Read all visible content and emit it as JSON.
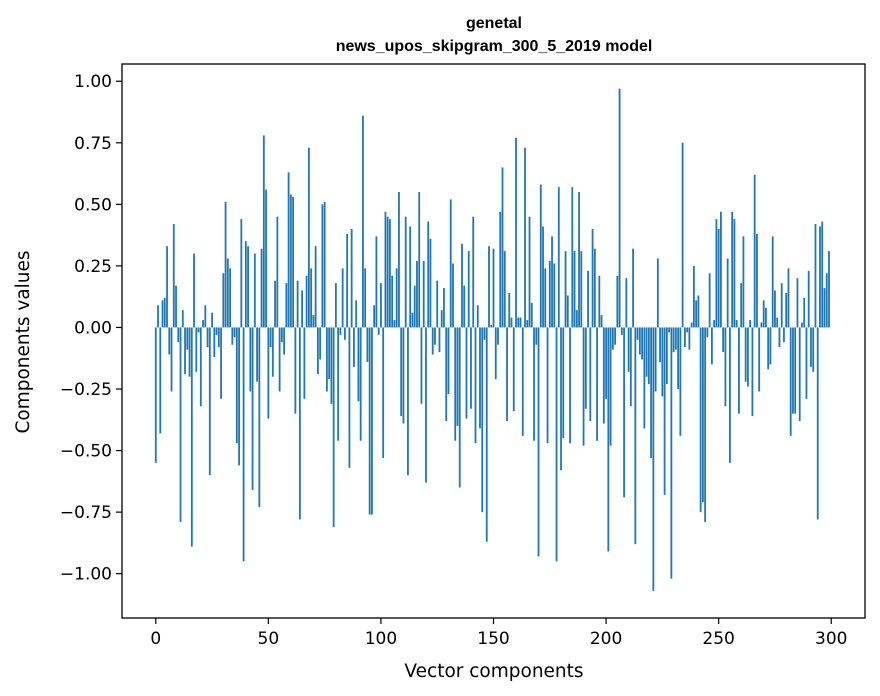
{
  "chart_data": {
    "type": "bar",
    "title": [
      "genetal",
      "news_upos_skipgram_300_5_2019 model"
    ],
    "xlabel": "Vector components",
    "ylabel": "Components values",
    "xlim": [
      -15,
      315
    ],
    "ylim": [
      -1.18,
      1.07
    ],
    "xticks": [
      0,
      50,
      100,
      150,
      200,
      250,
      300
    ],
    "yticks": [
      -1.0,
      -0.75,
      -0.5,
      -0.25,
      0.0,
      0.25,
      0.5,
      0.75,
      1.0
    ],
    "ytick_labels": [
      "−1.00",
      "−0.75",
      "−0.50",
      "−0.25",
      "0.00",
      "0.25",
      "0.50",
      "0.75",
      "1.00"
    ],
    "bar_color": "#1f77b4",
    "grid": false,
    "values": [
      -0.55,
      0.09,
      -0.43,
      0.11,
      0.12,
      0.33,
      -0.11,
      -0.26,
      0.42,
      0.17,
      -0.06,
      -0.79,
      0.07,
      -0.19,
      -0.09,
      -0.2,
      -0.89,
      0.3,
      -0.18,
      -0.02,
      -0.32,
      0.03,
      0.09,
      -0.08,
      -0.6,
      0.06,
      -0.12,
      -0.03,
      -0.08,
      -0.29,
      0.22,
      0.51,
      0.28,
      0.24,
      -0.07,
      -0.04,
      -0.47,
      -0.56,
      0.44,
      -0.95,
      0.35,
      0.33,
      -0.26,
      -0.66,
      0.3,
      -0.22,
      -0.73,
      0.32,
      0.78,
      0.56,
      -0.37,
      -0.08,
      -0.2,
      0.19,
      0.45,
      -0.26,
      -0.06,
      -0.11,
      0.18,
      0.63,
      0.54,
      0.53,
      -0.35,
      0.19,
      -0.78,
      0.15,
      -0.29,
      0.21,
      0.73,
      0.24,
      0.05,
      0.33,
      -0.19,
      -0.13,
      0.5,
      0.51,
      -0.26,
      -0.21,
      -0.31,
      -0.81,
      0.18,
      -0.46,
      -0.03,
      0.24,
      -0.05,
      0.38,
      -0.57,
      0.4,
      -0.16,
      0.11,
      -0.3,
      -0.46,
      0.86,
      0.24,
      -0.14,
      -0.76,
      -0.76,
      0.09,
      0.37,
      -0.03,
      0.18,
      -0.53,
      0.47,
      0.45,
      0.44,
      0.21,
      0.03,
      0.24,
      0.55,
      -0.36,
      -0.39,
      0.45,
      -0.6,
      0.41,
      0.06,
      0.17,
      0.27,
      0.55,
      -0.31,
      0.27,
      -0.63,
      0.43,
      0.36,
      -0.11,
      -0.07,
      0.19,
      -0.1,
      0.07,
      0.16,
      -0.38,
      -0.27,
      0.52,
      0.26,
      -0.46,
      -0.4,
      -0.65,
      0.34,
      0.17,
      -0.37,
      0.31,
      -0.33,
      0.45,
      -0.47,
      0.09,
      -0.41,
      -0.75,
      -0.05,
      -0.87,
      0.33,
      0.01,
      0.32,
      -0.21,
      -0.07,
      0.47,
      0.65,
      0.31,
      -0.38,
      0.14,
      0.04,
      -0.34,
      0.77,
      0.04,
      0.04,
      -0.44,
      0.73,
      0.03,
      0.45,
      0.1,
      -0.46,
      -0.07,
      -0.93,
      0.58,
      0.41,
      0.24,
      -0.47,
      0.27,
      0.37,
      0.26,
      -0.95,
      0.57,
      -0.58,
      -0.45,
      0.31,
      0.13,
      -0.47,
      0.57,
      0.31,
      0.07,
      0.55,
      0.31,
      -0.48,
      -0.33,
      0.23,
      -0.38,
      0.4,
      0.32,
      -0.46,
      0.21,
      0.05,
      -0.39,
      -0.29,
      -0.91,
      -0.48,
      -0.09,
      -0.07,
      0.21,
      0.97,
      -0.03,
      -0.69,
      0.2,
      -0.18,
      -0.32,
      0.32,
      -0.88,
      -0.05,
      -0.11,
      -0.13,
      -0.41,
      -0.2,
      -0.23,
      -0.53,
      -1.07,
      -0.26,
      0.28,
      -0.14,
      -0.28,
      -0.68,
      -0.23,
      -0.02,
      -1.02,
      -0.1,
      -0.09,
      -0.25,
      -0.44,
      0.75,
      -0.08,
      -0.02,
      -0.09,
      0.02,
      0.25,
      0.11,
      0.13,
      -0.75,
      -0.71,
      -0.79,
      -0.04,
      0.22,
      -0.15,
      0.03,
      0.44,
      0.4,
      0.47,
      -0.1,
      -0.32,
      0.28,
      -0.55,
      0.47,
      0.44,
      0.03,
      -0.35,
      0.18,
      0.37,
      -0.22,
      -0.24,
      0.03,
      -0.36,
      0.62,
      0.38,
      -0.26,
      0.02,
      0.11,
      0.08,
      -0.17,
      -0.15,
      0.37,
      0.15,
      0.04,
      -0.08,
      0.18,
      -0.06,
      0.14,
      0.24,
      -0.44,
      -0.35,
      -0.35,
      0.2,
      -0.38,
      0.02,
      0.12,
      -0.29,
      0.23,
      -0.16,
      -0.18,
      0.42,
      -0.78,
      0.41,
      0.43,
      0.16,
      0.22,
      0.31
    ]
  }
}
